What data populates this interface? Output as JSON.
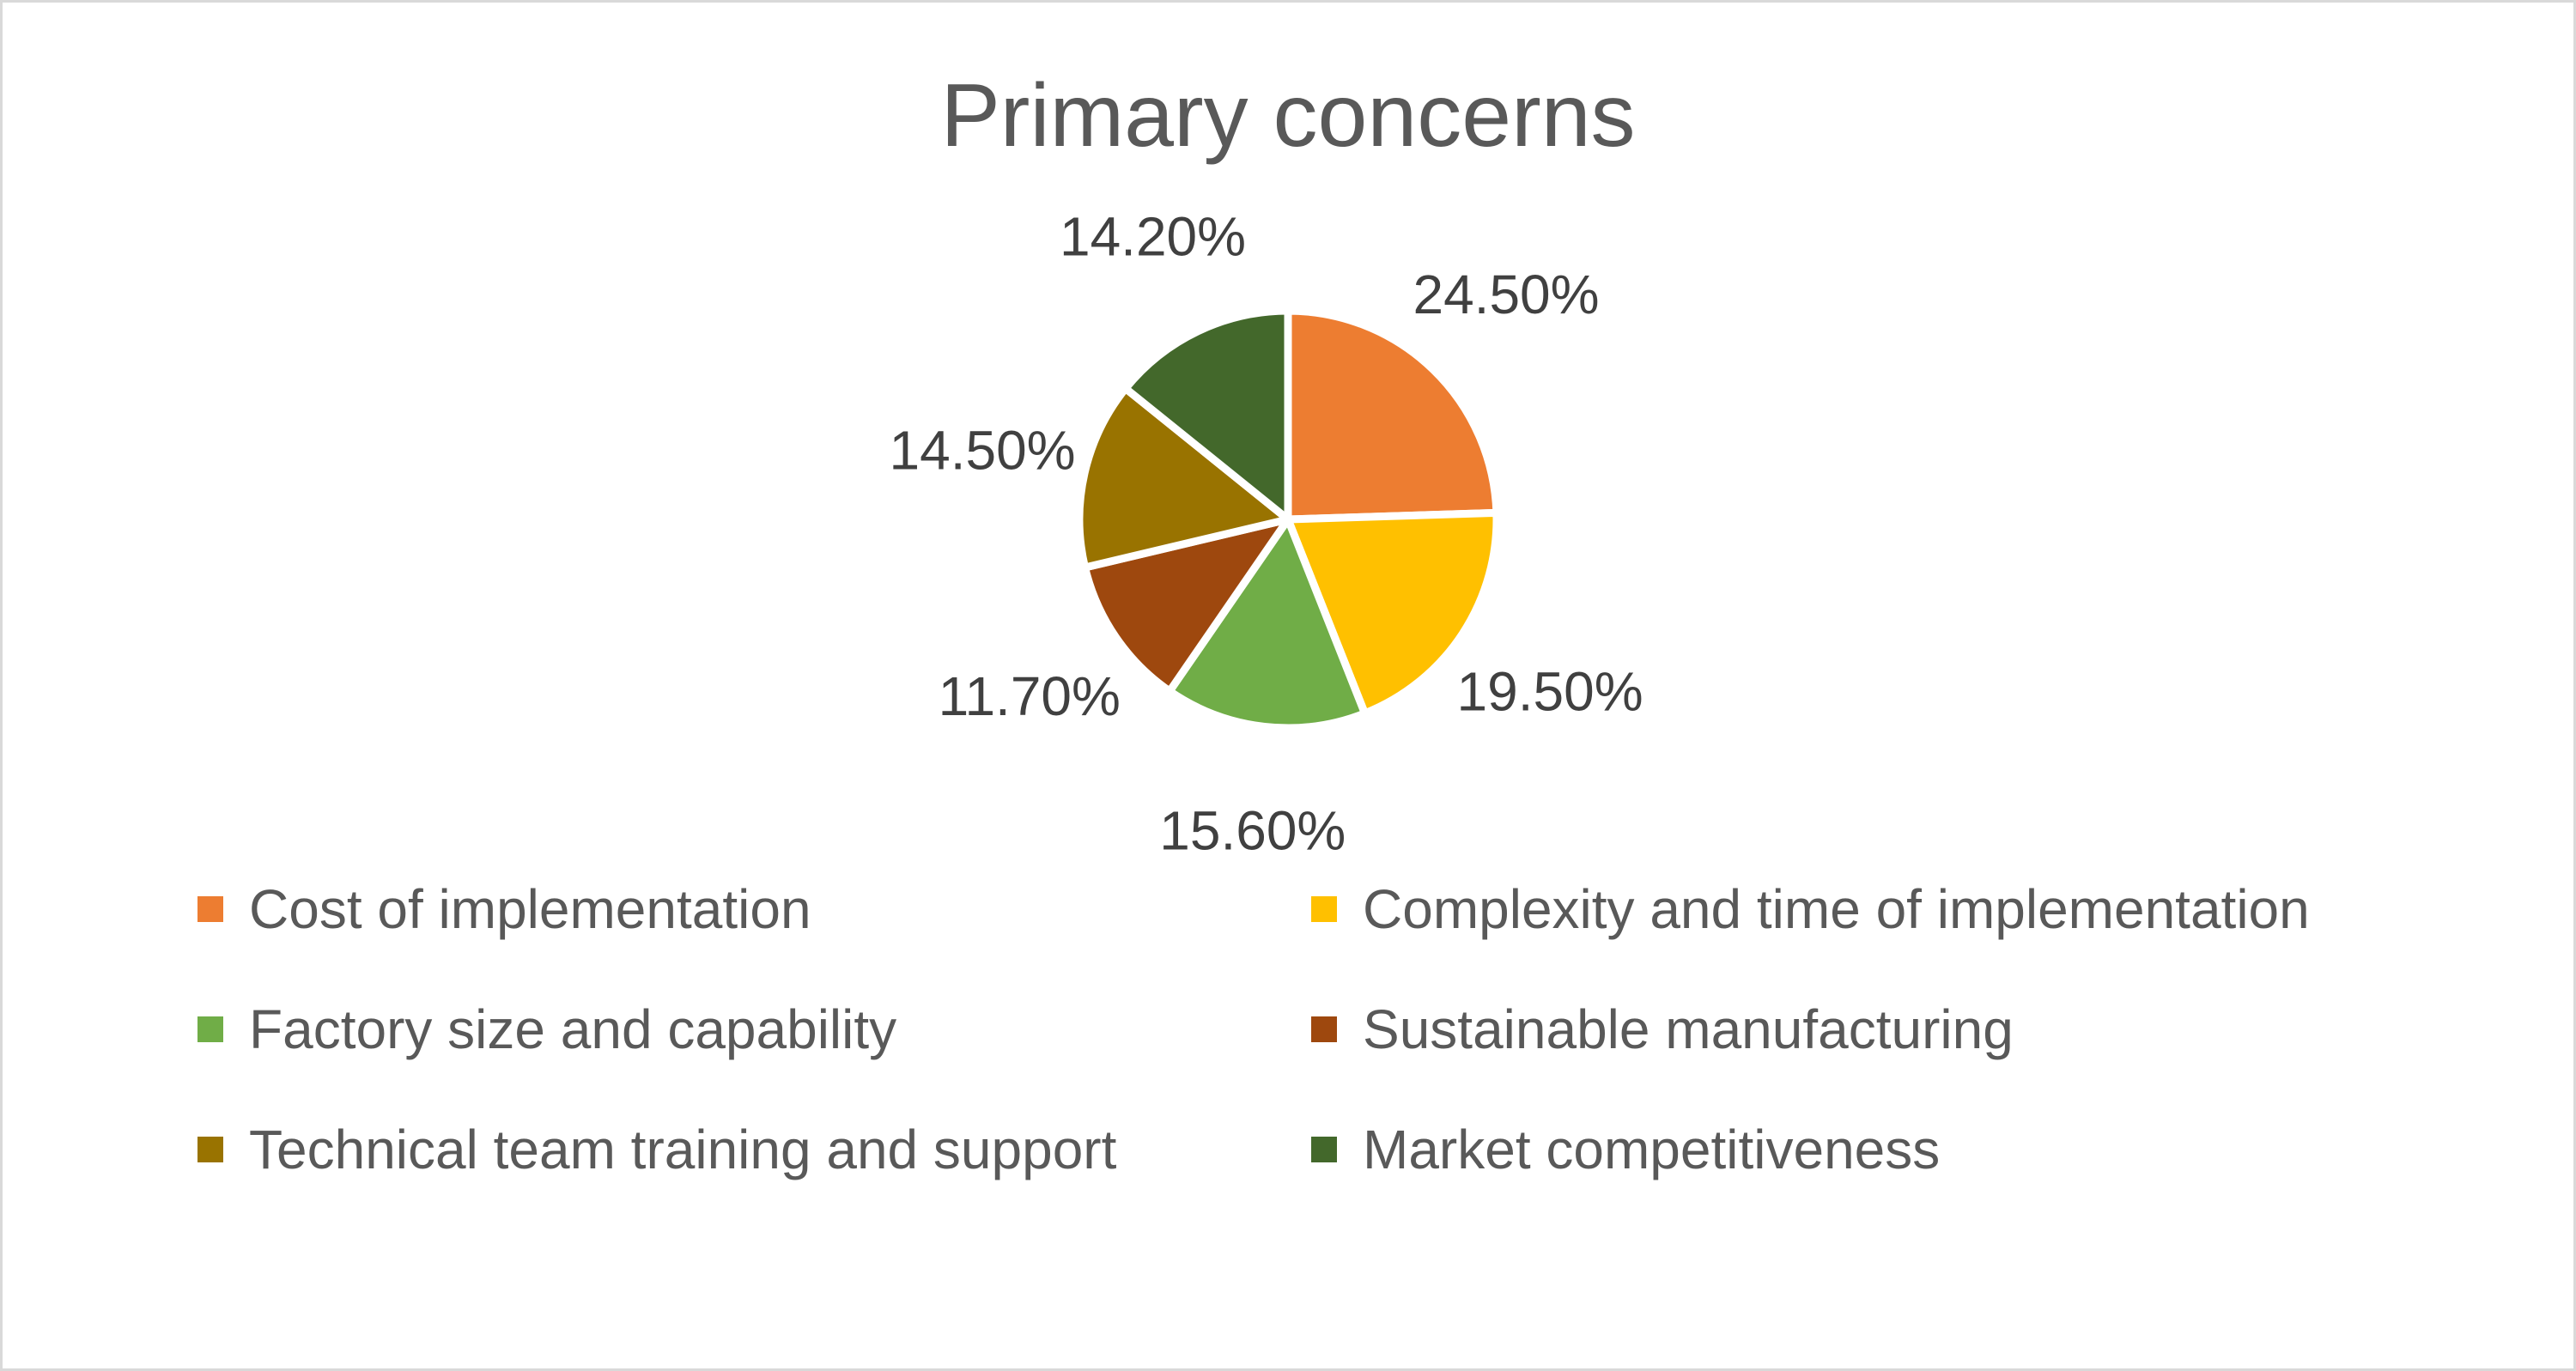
{
  "chart_data": {
    "type": "pie",
    "title": "Primary concerns",
    "categories": [
      "Cost of implementation",
      "Complexity and time of implementation",
      "Factory size and capability",
      "Sustainable manufacturing",
      "Technical team training and support",
      "Market competitiveness"
    ],
    "values": [
      24.5,
      19.5,
      15.6,
      11.7,
      14.5,
      14.2
    ],
    "data_labels": [
      "24.50%",
      "19.50%",
      "15.60%",
      "11.70%",
      "14.50%",
      "14.20%"
    ],
    "colors": [
      "#ED7D31",
      "#FFC000",
      "#70AD47",
      "#9E480E",
      "#997300",
      "#43682B"
    ],
    "legend_position": "bottom",
    "start_angle_deg": 0,
    "direction": "clockwise"
  }
}
